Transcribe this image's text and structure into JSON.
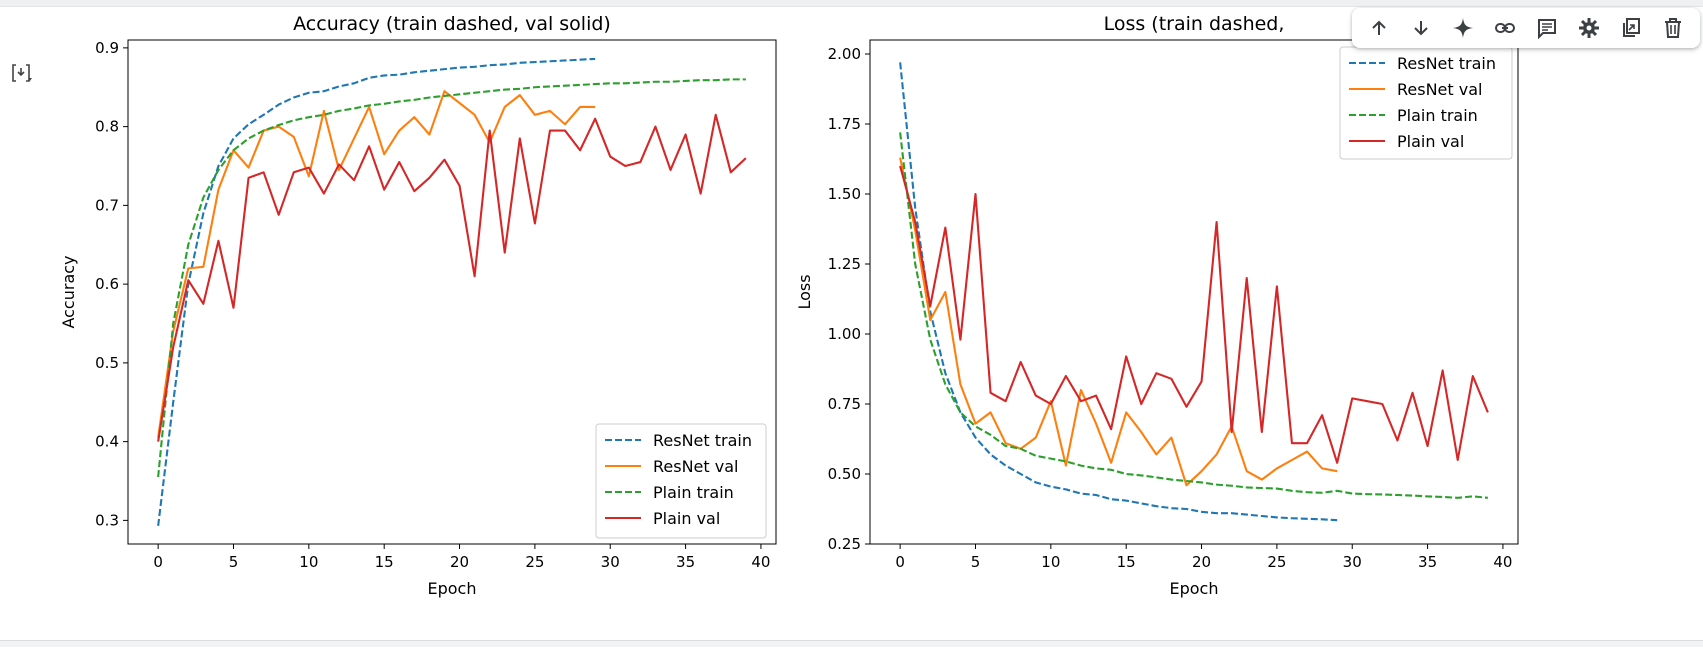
{
  "toolbar": {
    "icons": [
      "arrow-up-icon",
      "arrow-down-icon",
      "sparkle-icon",
      "link-icon",
      "comment-icon",
      "gear-icon",
      "mirror-cell-icon",
      "trash-icon"
    ]
  },
  "colors": {
    "resnet_train": "#1f77b4",
    "resnet_val": "#ff7f0e",
    "plain_train": "#2ca02c",
    "plain_val": "#d62728"
  },
  "chart_data": [
    {
      "type": "line",
      "title": "Accuracy (train dashed, val solid)",
      "xlabel": "Epoch",
      "ylabel": "Accuracy",
      "xlim": [
        -2,
        41
      ],
      "ylim": [
        0.27,
        0.91
      ],
      "xticks": [
        0,
        5,
        10,
        15,
        20,
        25,
        30,
        35,
        40
      ],
      "xtick_labels": [
        "0",
        "5",
        "10",
        "15",
        "20",
        "25",
        "30",
        "35",
        "40"
      ],
      "yticks": [
        0.3,
        0.4,
        0.5,
        0.6,
        0.7,
        0.8,
        0.9
      ],
      "ytick_labels": [
        "0.3",
        "0.4",
        "0.5",
        "0.6",
        "0.7",
        "0.8",
        "0.9"
      ],
      "grid": false,
      "legend_position": "lower-right",
      "series": [
        {
          "name": "ResNet train",
          "style": "dashed",
          "color": "#1f77b4",
          "x": [
            0,
            1,
            2,
            3,
            4,
            5,
            6,
            7,
            8,
            9,
            10,
            11,
            12,
            13,
            14,
            15,
            16,
            17,
            18,
            19,
            20,
            21,
            22,
            23,
            24,
            25,
            26,
            27,
            28,
            29
          ],
          "y": [
            0.293,
            0.45,
            0.6,
            0.69,
            0.75,
            0.785,
            0.803,
            0.815,
            0.828,
            0.837,
            0.843,
            0.845,
            0.851,
            0.855,
            0.862,
            0.865,
            0.866,
            0.869,
            0.871,
            0.873,
            0.875,
            0.876,
            0.878,
            0.879,
            0.881,
            0.882,
            0.883,
            0.884,
            0.885,
            0.886
          ]
        },
        {
          "name": "ResNet val",
          "style": "solid",
          "color": "#ff7f0e",
          "x": [
            0,
            1,
            2,
            3,
            4,
            5,
            6,
            7,
            8,
            9,
            10,
            11,
            12,
            13,
            14,
            15,
            16,
            17,
            18,
            19,
            20,
            21,
            22,
            23,
            24,
            25,
            26,
            27,
            28,
            29
          ],
          "y": [
            0.405,
            0.54,
            0.62,
            0.622,
            0.72,
            0.77,
            0.748,
            0.795,
            0.8,
            0.787,
            0.737,
            0.82,
            0.745,
            0.785,
            0.825,
            0.765,
            0.795,
            0.812,
            0.79,
            0.845,
            0.83,
            0.815,
            0.78,
            0.825,
            0.84,
            0.815,
            0.82,
            0.803,
            0.825,
            0.825
          ]
        },
        {
          "name": "Plain train",
          "style": "dashed",
          "color": "#2ca02c",
          "x": [
            0,
            1,
            2,
            3,
            4,
            5,
            6,
            7,
            8,
            9,
            10,
            11,
            12,
            13,
            14,
            15,
            16,
            17,
            18,
            19,
            20,
            21,
            22,
            23,
            24,
            25,
            26,
            27,
            28,
            29,
            30,
            31,
            32,
            33,
            34,
            35,
            36,
            37,
            38,
            39
          ],
          "y": [
            0.355,
            0.55,
            0.65,
            0.71,
            0.745,
            0.77,
            0.785,
            0.795,
            0.802,
            0.808,
            0.812,
            0.815,
            0.82,
            0.823,
            0.827,
            0.829,
            0.832,
            0.834,
            0.837,
            0.839,
            0.841,
            0.843,
            0.845,
            0.847,
            0.848,
            0.85,
            0.851,
            0.852,
            0.853,
            0.854,
            0.855,
            0.855,
            0.856,
            0.857,
            0.857,
            0.858,
            0.859,
            0.859,
            0.86,
            0.86
          ]
        },
        {
          "name": "Plain val",
          "style": "solid",
          "color": "#d62728",
          "x": [
            0,
            1,
            2,
            3,
            4,
            5,
            6,
            7,
            8,
            9,
            10,
            11,
            12,
            13,
            14,
            15,
            16,
            17,
            18,
            19,
            20,
            21,
            22,
            23,
            24,
            25,
            26,
            27,
            28,
            29,
            30,
            31,
            32,
            33,
            34,
            35,
            36,
            37,
            38,
            39
          ],
          "y": [
            0.4,
            0.52,
            0.605,
            0.575,
            0.655,
            0.57,
            0.735,
            0.742,
            0.688,
            0.742,
            0.748,
            0.715,
            0.752,
            0.732,
            0.775,
            0.72,
            0.755,
            0.718,
            0.735,
            0.758,
            0.725,
            0.61,
            0.795,
            0.64,
            0.785,
            0.677,
            0.795,
            0.795,
            0.77,
            0.81,
            0.762,
            0.75,
            0.755,
            0.8,
            0.745,
            0.79,
            0.715,
            0.815,
            0.742,
            0.76
          ]
        }
      ]
    },
    {
      "type": "line",
      "title": "Loss (train dashed,",
      "xlabel": "Epoch",
      "ylabel": "Loss",
      "xlim": [
        -2,
        41
      ],
      "ylim": [
        0.25,
        2.05
      ],
      "xticks": [
        0,
        5,
        10,
        15,
        20,
        25,
        30,
        35,
        40
      ],
      "xtick_labels": [
        "0",
        "5",
        "10",
        "15",
        "20",
        "25",
        "30",
        "35",
        "40"
      ],
      "yticks": [
        0.25,
        0.5,
        0.75,
        1.0,
        1.25,
        1.5,
        1.75,
        2.0
      ],
      "ytick_labels": [
        "0.25",
        "0.50",
        "0.75",
        "1.00",
        "1.25",
        "1.50",
        "1.75",
        "2.00"
      ],
      "grid": false,
      "legend_position": "upper-right",
      "series": [
        {
          "name": "ResNet train",
          "style": "dashed",
          "color": "#1f77b4",
          "x": [
            0,
            1,
            2,
            3,
            4,
            5,
            6,
            7,
            8,
            9,
            10,
            11,
            12,
            13,
            14,
            15,
            16,
            17,
            18,
            19,
            20,
            21,
            22,
            23,
            24,
            25,
            26,
            27,
            28,
            29
          ],
          "y": [
            1.97,
            1.45,
            1.08,
            0.86,
            0.72,
            0.63,
            0.57,
            0.53,
            0.5,
            0.47,
            0.455,
            0.445,
            0.43,
            0.425,
            0.41,
            0.405,
            0.395,
            0.385,
            0.378,
            0.375,
            0.365,
            0.36,
            0.36,
            0.355,
            0.35,
            0.345,
            0.342,
            0.34,
            0.338,
            0.335
          ]
        },
        {
          "name": "ResNet val",
          "style": "solid",
          "color": "#ff7f0e",
          "x": [
            0,
            1,
            2,
            3,
            4,
            5,
            6,
            7,
            8,
            9,
            10,
            11,
            12,
            13,
            14,
            15,
            16,
            17,
            18,
            19,
            20,
            21,
            22,
            23,
            24,
            25,
            26,
            27,
            28,
            29
          ],
          "y": [
            1.63,
            1.37,
            1.05,
            1.15,
            0.82,
            0.68,
            0.72,
            0.61,
            0.59,
            0.63,
            0.76,
            0.53,
            0.8,
            0.68,
            0.54,
            0.72,
            0.65,
            0.57,
            0.63,
            0.46,
            0.51,
            0.57,
            0.67,
            0.51,
            0.48,
            0.52,
            0.55,
            0.58,
            0.52,
            0.51
          ]
        },
        {
          "name": "Plain train",
          "style": "dashed",
          "color": "#2ca02c",
          "x": [
            0,
            1,
            2,
            3,
            4,
            5,
            6,
            7,
            8,
            9,
            10,
            11,
            12,
            13,
            14,
            15,
            16,
            17,
            18,
            19,
            20,
            21,
            22,
            23,
            24,
            25,
            26,
            27,
            28,
            29,
            30,
            31,
            32,
            33,
            34,
            35,
            36,
            37,
            38,
            39
          ],
          "y": [
            1.72,
            1.25,
            0.98,
            0.82,
            0.72,
            0.67,
            0.64,
            0.6,
            0.59,
            0.565,
            0.555,
            0.545,
            0.53,
            0.52,
            0.515,
            0.5,
            0.495,
            0.488,
            0.48,
            0.475,
            0.47,
            0.462,
            0.458,
            0.452,
            0.45,
            0.448,
            0.44,
            0.435,
            0.433,
            0.44,
            0.43,
            0.428,
            0.427,
            0.425,
            0.423,
            0.42,
            0.418,
            0.415,
            0.42,
            0.415
          ]
        },
        {
          "name": "Plain val",
          "style": "solid",
          "color": "#d62728",
          "x": [
            0,
            1,
            2,
            3,
            4,
            5,
            6,
            7,
            8,
            9,
            10,
            11,
            12,
            13,
            14,
            15,
            16,
            17,
            18,
            19,
            20,
            21,
            22,
            23,
            24,
            25,
            26,
            27,
            28,
            29,
            30,
            31,
            32,
            33,
            34,
            35,
            36,
            37,
            38,
            39
          ],
          "y": [
            1.6,
            1.4,
            1.1,
            1.38,
            0.98,
            1.5,
            0.79,
            0.76,
            0.9,
            0.78,
            0.75,
            0.85,
            0.76,
            0.78,
            0.66,
            0.92,
            0.75,
            0.86,
            0.84,
            0.74,
            0.83,
            1.4,
            0.65,
            1.2,
            0.65,
            1.17,
            0.61,
            0.61,
            0.71,
            0.54,
            0.77,
            0.76,
            0.75,
            0.62,
            0.79,
            0.6,
            0.87,
            0.55,
            0.85,
            0.72
          ]
        }
      ]
    }
  ]
}
